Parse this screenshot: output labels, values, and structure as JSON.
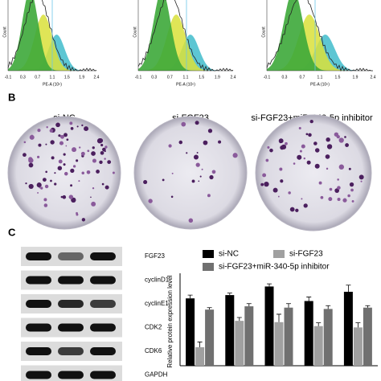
{
  "panel_a": {
    "y_label": "Count",
    "x_label": "PE-A (10⁶)",
    "xticks": [
      "-0.1",
      "0.3",
      "0.7",
      "1.1",
      "1.5",
      "1.9",
      "2.4"
    ]
  },
  "panel_b": {
    "letter": "B",
    "groups": [
      "si-NC",
      "si-FGF23",
      "si-FGF23+miR-340-5p inhibitor"
    ]
  },
  "panel_c": {
    "letter": "C",
    "blot_labels": [
      "FGF23",
      "cyclinD1",
      "cyclinE1",
      "CDK2",
      "CDK6",
      "GAPDH"
    ],
    "chart": {
      "type": "bar",
      "y_label": "Relative protein expression level",
      "ylim": [
        0,
        1.4
      ],
      "series": [
        {
          "name": "si-NC",
          "color": "#000000",
          "values": [
            1.02,
            1.07,
            1.2,
            0.98,
            1.12
          ],
          "errors": [
            0.05,
            0.03,
            0.04,
            0.06,
            0.1
          ]
        },
        {
          "name": "si-FGF23",
          "color": "#a0a0a0",
          "values": [
            0.28,
            0.68,
            0.66,
            0.6,
            0.58
          ],
          "errors": [
            0.08,
            0.05,
            0.12,
            0.05,
            0.07
          ]
        },
        {
          "name": "si-FGF23+miR-340-5p inhibitor",
          "color": "#707070",
          "values": [
            0.85,
            0.9,
            0.88,
            0.86,
            0.88
          ],
          "errors": [
            0.03,
            0.04,
            0.06,
            0.05,
            0.03
          ]
        }
      ]
    }
  }
}
